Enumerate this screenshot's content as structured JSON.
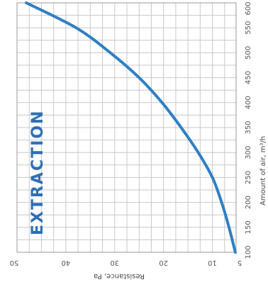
{
  "chart_data": {
    "type": "line",
    "orientation": "rotated-90",
    "title": "",
    "panel_label": "EXTRACTION",
    "xlabel": "Amount of air, m³/h",
    "ylabel": "Resistance, Pa",
    "x_ticks": [
      "100",
      "150",
      "200",
      "250",
      "300",
      "350",
      "400",
      "450",
      "500",
      "550",
      "600"
    ],
    "y_ticks": [
      "50",
      "40",
      "30",
      "20",
      "10",
      "5"
    ],
    "xlim": [
      100,
      600
    ],
    "ylim": [
      5,
      50
    ],
    "grid": true,
    "series": [
      {
        "x": [
          100,
          150,
          200,
          250,
          300,
          350,
          400,
          450,
          500,
          550,
          600
        ],
        "y": [
          5.3,
          6.6,
          8.1,
          10.0,
          12.9,
          16.4,
          20.3,
          25.0,
          30.9,
          37.9,
          48.1
        ]
      }
    ],
    "colors": {
      "line": "#2f7fc4",
      "grid": "#c8c8c8",
      "label": "#2e6fb3"
    }
  }
}
